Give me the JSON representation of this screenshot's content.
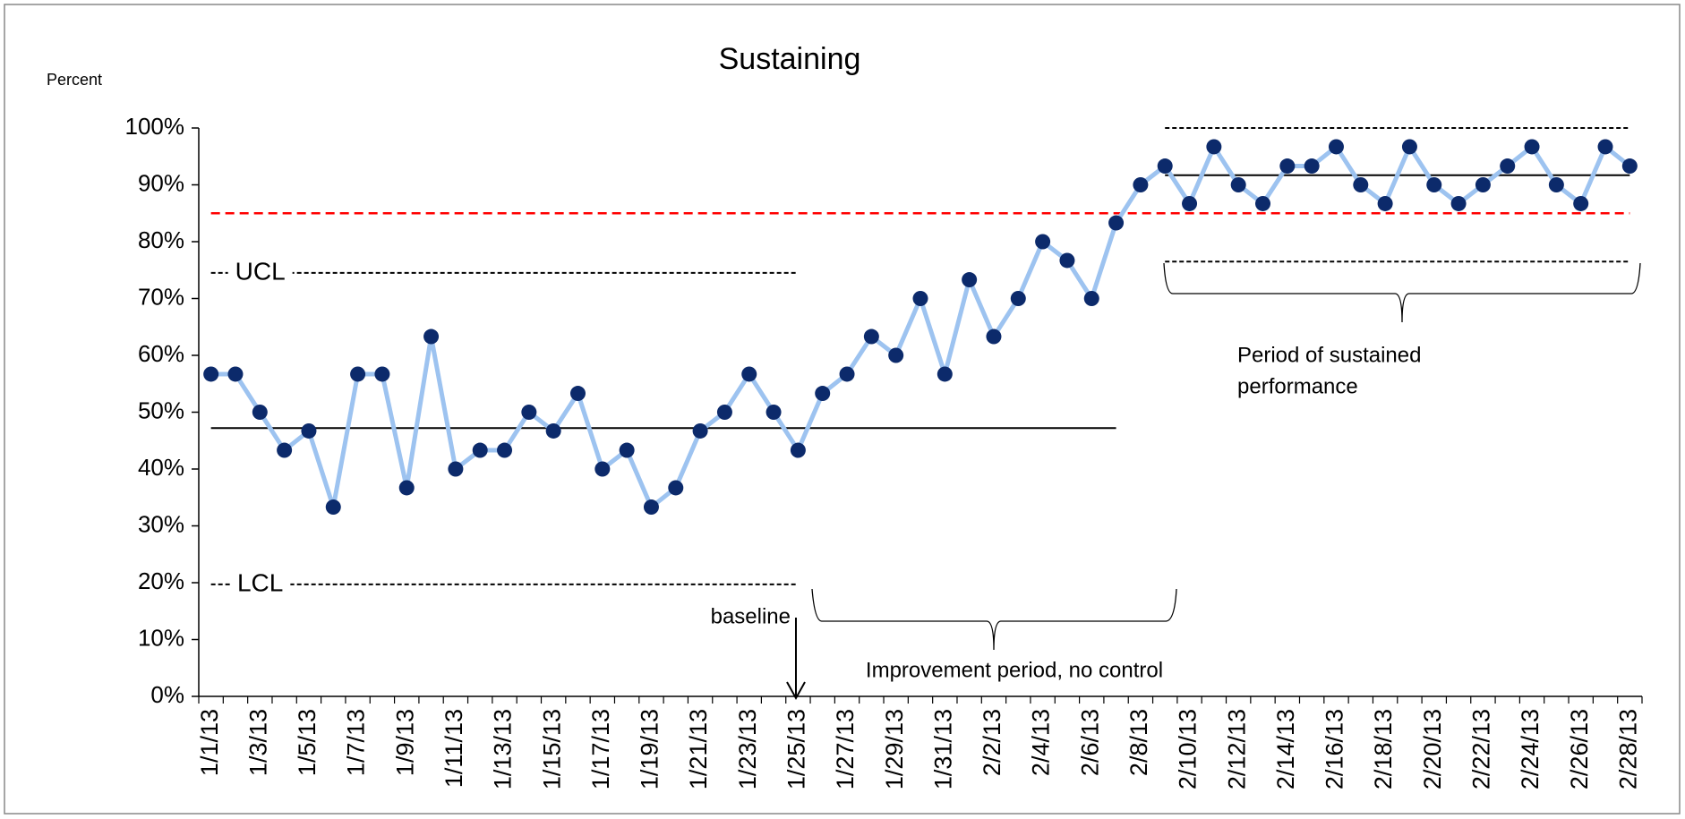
{
  "chart_data": {
    "type": "line",
    "title": "Sustaining",
    "y_label": "Percent",
    "categories": [
      "1/1/13",
      null,
      "1/3/13",
      null,
      "1/5/13",
      null,
      "1/7/13",
      null,
      "1/9/13",
      null,
      "1/11/13",
      null,
      "1/13/13",
      null,
      "1/15/13",
      null,
      "1/17/13",
      null,
      "1/19/13",
      null,
      "1/21/13",
      null,
      "1/23/13",
      null,
      "1/25/13",
      null,
      "1/27/13",
      null,
      "1/29/13",
      null,
      "1/31/13",
      null,
      "2/2/13",
      null,
      "2/4/13",
      null,
      "2/6/13",
      null,
      "2/8/13",
      null,
      "2/10/13",
      null,
      "2/12/13",
      null,
      "2/14/13",
      null,
      "2/16/13",
      null,
      "2/18/13",
      null,
      "2/20/13",
      null,
      "2/22/13",
      null,
      "2/24/13",
      null,
      "2/26/13",
      null,
      "2/28/13"
    ],
    "values": [
      56.7,
      56.7,
      50,
      43.3,
      46.7,
      33.3,
      56.7,
      56.7,
      36.7,
      63.3,
      40,
      43.3,
      43.3,
      50,
      46.7,
      53.3,
      40,
      43.3,
      33.3,
      36.7,
      46.7,
      50,
      56.7,
      50,
      43.3,
      53.3,
      56.7,
      63.3,
      60,
      70,
      56.7,
      73.3,
      63.3,
      70,
      80,
      76.7,
      70,
      83.3,
      90,
      93.3,
      86.7,
      96.7,
      90,
      86.7,
      93.3,
      93.3,
      96.7,
      90,
      86.7,
      96.7,
      90,
      86.7,
      90,
      93.3,
      96.7,
      90,
      86.7,
      96.7,
      93.3
    ],
    "color": "#9dc3f0",
    "marker_color": "#0c2a6b",
    "ylim": [
      0,
      100
    ],
    "yticks": [
      {
        "value": 0,
        "label": "0%"
      },
      {
        "value": 10,
        "label": "10%"
      },
      {
        "value": 20,
        "label": "20%"
      },
      {
        "value": 30,
        "label": "30%"
      },
      {
        "value": 40,
        "label": "40%"
      },
      {
        "value": 50,
        "label": "50%"
      },
      {
        "value": 60,
        "label": "60%"
      },
      {
        "value": 70,
        "label": "70%"
      },
      {
        "value": 80,
        "label": "80%"
      },
      {
        "value": 90,
        "label": "90%"
      },
      {
        "value": 100,
        "label": "100%"
      }
    ],
    "grid": false,
    "reference_lines": [
      {
        "label": "UCL",
        "value": 74.5,
        "start": 0,
        "end": 24,
        "style": "dashed",
        "color": "#000000"
      },
      {
        "label": "LCL",
        "value": 19.7,
        "start": 0,
        "end": 24,
        "style": "dashed",
        "color": "#000000"
      },
      {
        "value": 47.2,
        "start": 0,
        "end": 37,
        "style": "solid",
        "color": "#000000"
      },
      {
        "value": 85,
        "start": 0,
        "end": 58,
        "style": "dashed",
        "color": "#ff0000"
      },
      {
        "value": 91.7,
        "start": 39,
        "end": 58,
        "style": "solid",
        "color": "#000000"
      },
      {
        "value": 100,
        "start": 39,
        "end": 58,
        "style": "dashed",
        "color": "#000000"
      },
      {
        "value": 76.5,
        "start": 39,
        "end": 58,
        "style": "dashed",
        "color": "#000000"
      }
    ],
    "annotations": {
      "baseline": "baseline",
      "improvement": "Improvement period, no control",
      "sustained": [
        "Period of sustained",
        "performance"
      ]
    }
  }
}
